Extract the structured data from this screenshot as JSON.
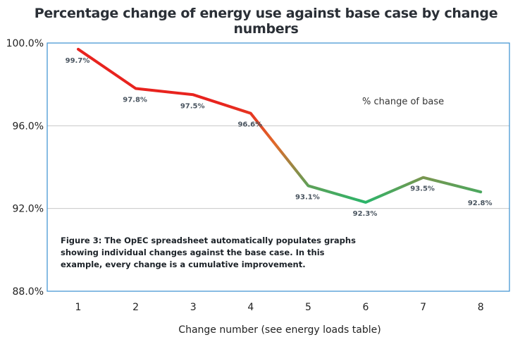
{
  "chart_data": {
    "type": "line",
    "title": "Percentage change of energy use against base case by change numbers",
    "xlabel": "Change number (see energy loads table)",
    "ylabel": "",
    "x": [
      1,
      2,
      3,
      4,
      5,
      6,
      7,
      8
    ],
    "series": [
      {
        "name": "% change of base",
        "values": [
          99.7,
          97.8,
          97.5,
          96.6,
          93.1,
          92.3,
          93.5,
          92.8
        ],
        "data_labels": [
          "99.7%",
          "97.8%",
          "97.5%",
          "96.6%",
          "93.1%",
          "92.3%",
          "93.5%",
          "92.8%"
        ]
      }
    ],
    "ylim": [
      88.0,
      100.0
    ],
    "yticks": [
      88.0,
      92.0,
      96.0,
      100.0
    ],
    "ytick_labels": [
      "88.0%",
      "92.0%",
      "96.0%",
      "100.0%"
    ],
    "xtick_labels": [
      "1",
      "2",
      "3",
      "4",
      "5",
      "6",
      "7",
      "8"
    ],
    "grid": true,
    "legend_position": "top-right",
    "colors": {
      "high": "#e8231e",
      "mid": "#e06a2a",
      "low": "#2bb56a",
      "frame": "#3a8fd0",
      "grid": "#c8c8c8"
    },
    "annotation": "Figure 3: The OpEC spreadsheet automatically populates graphs showing individual changes against the base case. In this example, every change is a cumulative improvement."
  }
}
